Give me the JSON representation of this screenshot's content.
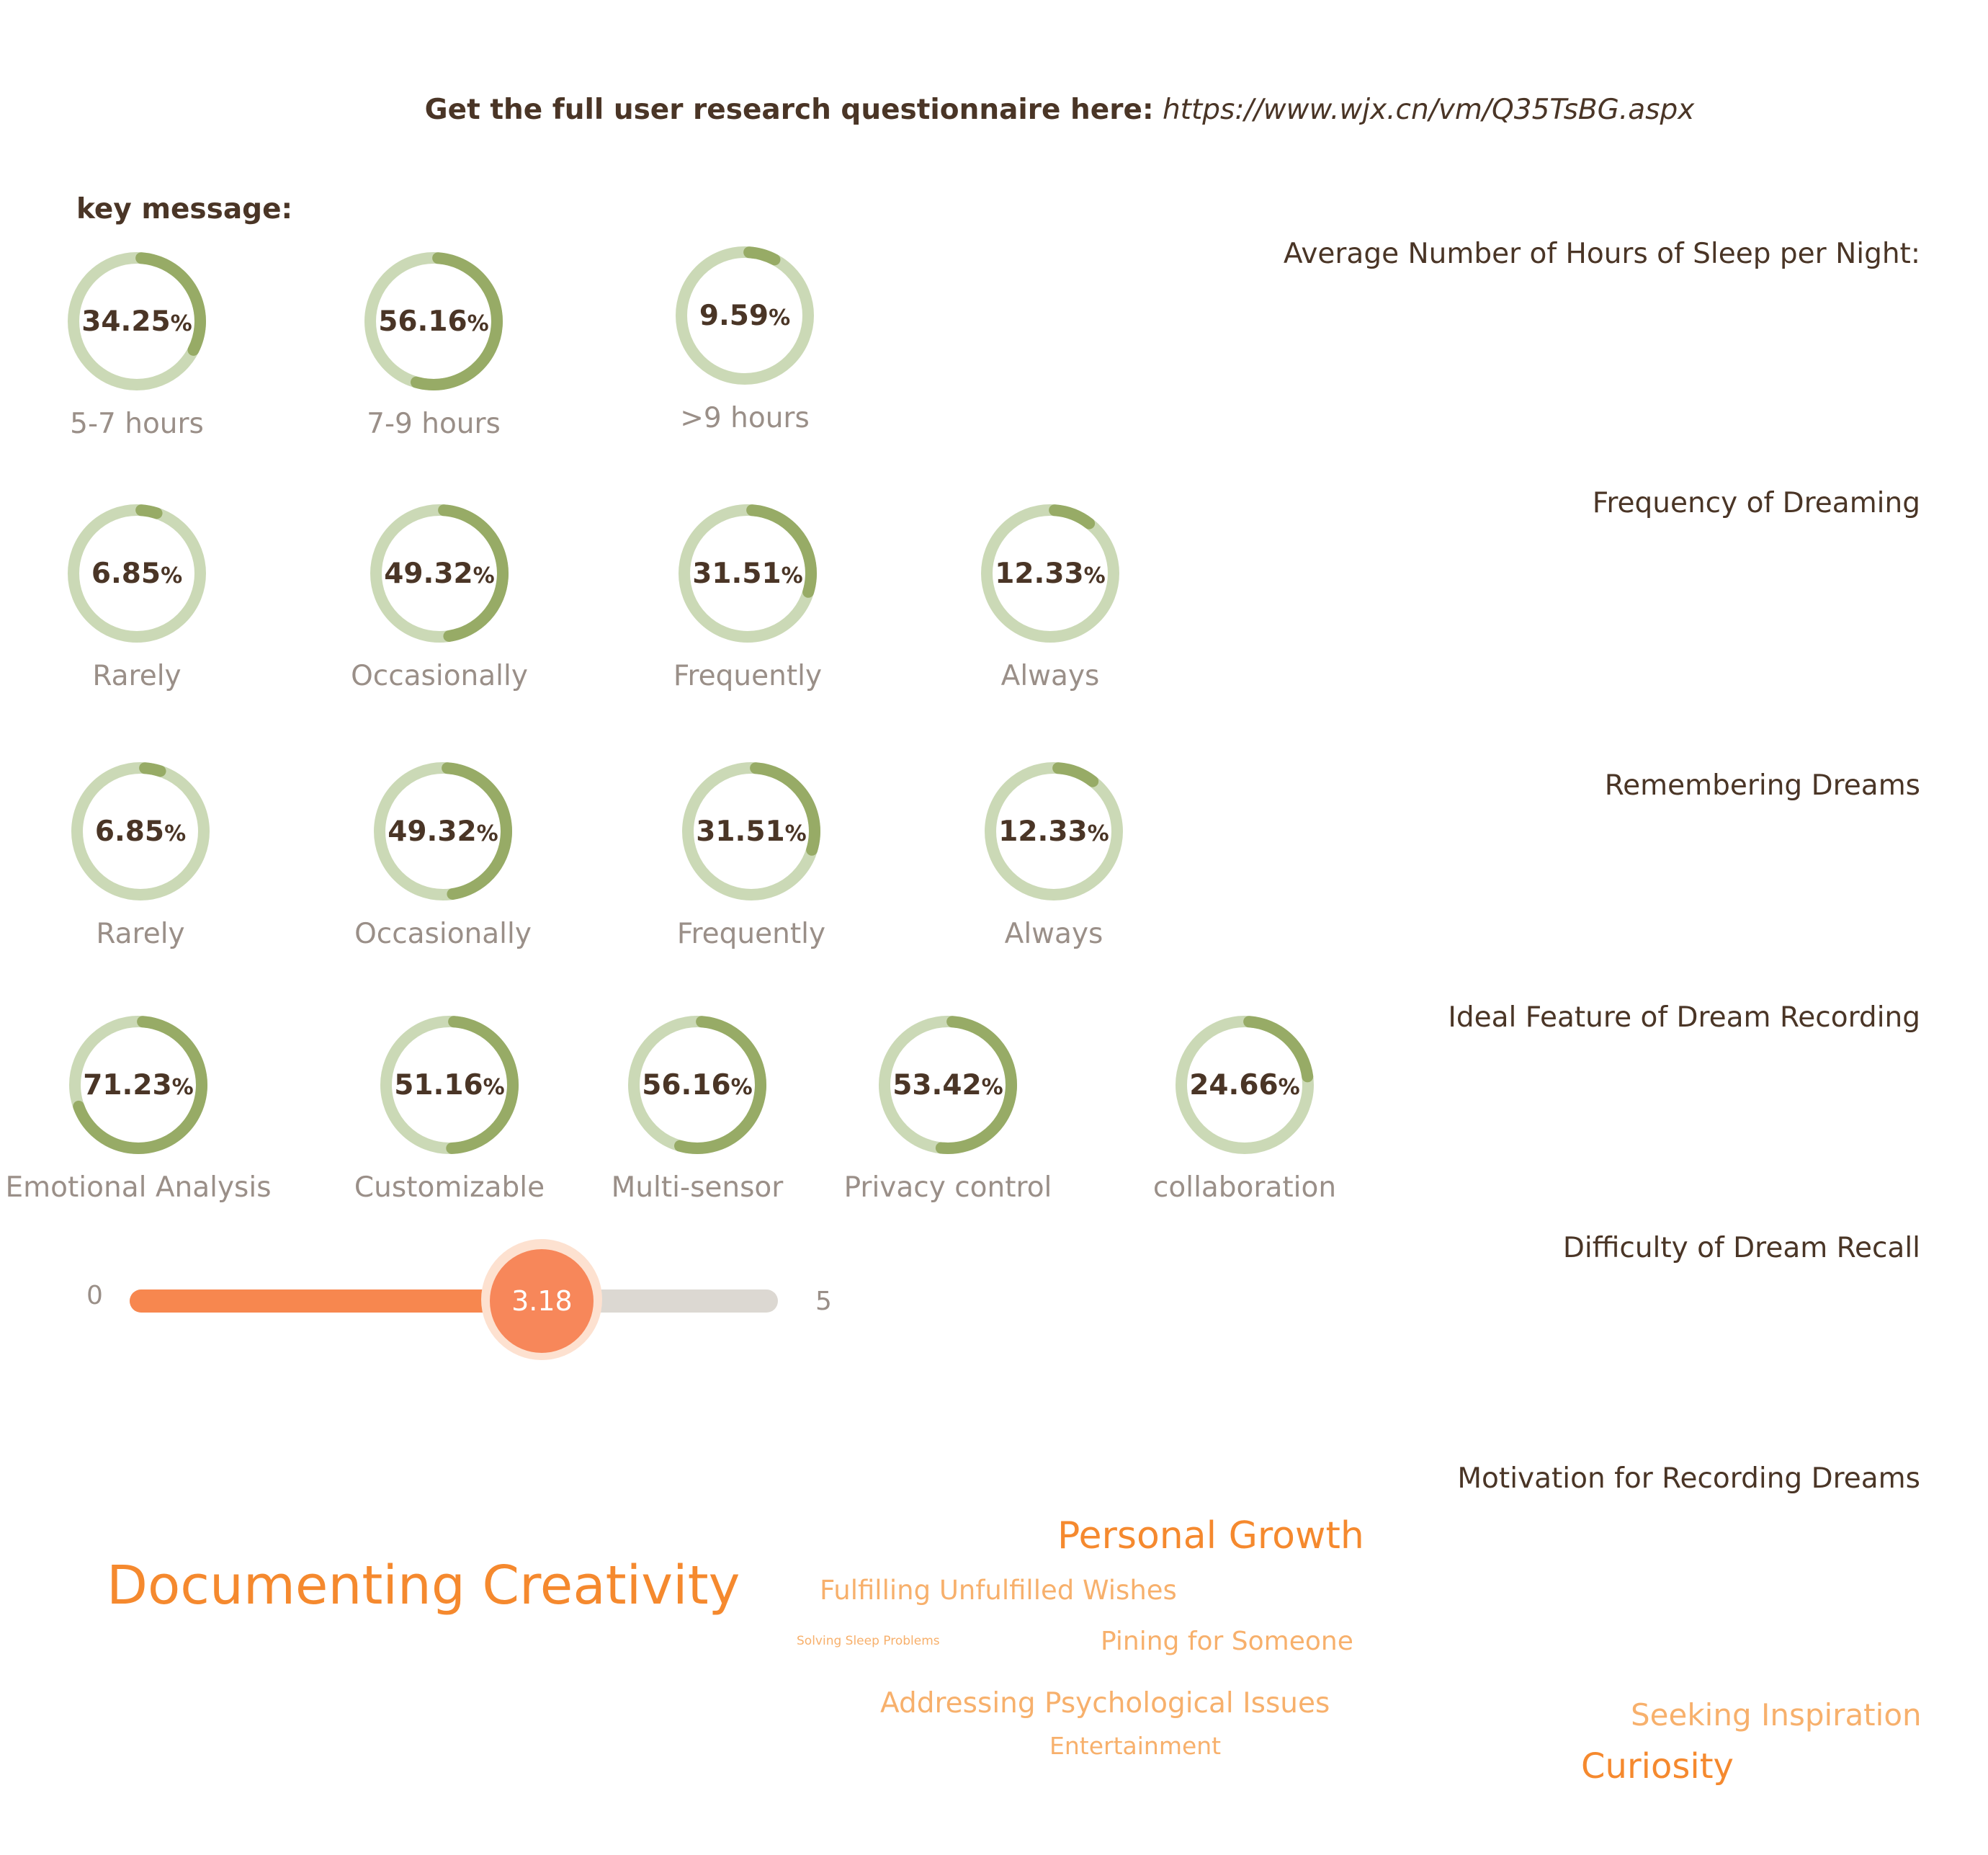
{
  "header": {
    "prefix": "Get the full user research questionnaire here:",
    "url": "https://www.wjx.cn/vm/Q35TsBG.aspx"
  },
  "key_message": "key message:",
  "colors": {
    "ring_track": "#cbd9b6",
    "ring_value": "#97ab66",
    "slider_fill": "#f7874f",
    "slider_track": "#dcd8d2",
    "word_dark": "#f5892e",
    "word_light": "#f7b06c"
  },
  "chart_data": [
    {
      "type": "donut",
      "title": "Average Number of Hours of Sleep per Night:",
      "items": [
        {
          "label": "5-7 hours",
          "value": 34.25
        },
        {
          "label": "7-9 hours",
          "value": 56.16
        },
        {
          "label": ">9 hours",
          "value": 9.59
        }
      ]
    },
    {
      "type": "donut",
      "title": "Frequency of Dreaming",
      "items": [
        {
          "label": "Rarely",
          "value": 6.85
        },
        {
          "label": "Occasionally",
          "value": 49.32
        },
        {
          "label": "Frequently",
          "value": 31.51
        },
        {
          "label": "Always",
          "value": 12.33
        }
      ]
    },
    {
      "type": "donut",
      "title": "Remembering Dreams",
      "items": [
        {
          "label": "Rarely",
          "value": 6.85
        },
        {
          "label": "Occasionally",
          "value": 49.32
        },
        {
          "label": "Frequently",
          "value": 31.51
        },
        {
          "label": "Always",
          "value": 12.33
        }
      ]
    },
    {
      "type": "donut",
      "title": "Ideal Feature of Dream Recording",
      "items": [
        {
          "label": "Emotional Analysis",
          "value": 71.23
        },
        {
          "label": "Customizable",
          "value": 51.16
        },
        {
          "label": "Multi-sensor",
          "value": 56.16
        },
        {
          "label": "Privacy control",
          "value": 53.42
        },
        {
          "label": "collaboration",
          "value": 24.66
        }
      ]
    },
    {
      "type": "slider",
      "title": "Difficulty of Dream Recall",
      "min": 0,
      "max": 5,
      "min_label": "0",
      "max_label": "5",
      "value": 3.18,
      "value_label": "3.18"
    },
    {
      "type": "wordcloud",
      "title": "Motivation for Recording Dreams",
      "words": [
        {
          "text": "Documenting Creativity",
          "weight": 10
        },
        {
          "text": "Personal Growth",
          "weight": 6
        },
        {
          "text": "Fulfilling Unfulfilled Wishes",
          "weight": 4
        },
        {
          "text": "Solving Sleep Problems",
          "weight": 1
        },
        {
          "text": "Pining for Someone",
          "weight": 4
        },
        {
          "text": "Addressing Psychological Issues",
          "weight": 4.5
        },
        {
          "text": "Entertainment",
          "weight": 3.5
        },
        {
          "text": "Seeking Inspiration",
          "weight": 4.5
        },
        {
          "text": "Curiosity",
          "weight": 5
        }
      ]
    }
  ]
}
